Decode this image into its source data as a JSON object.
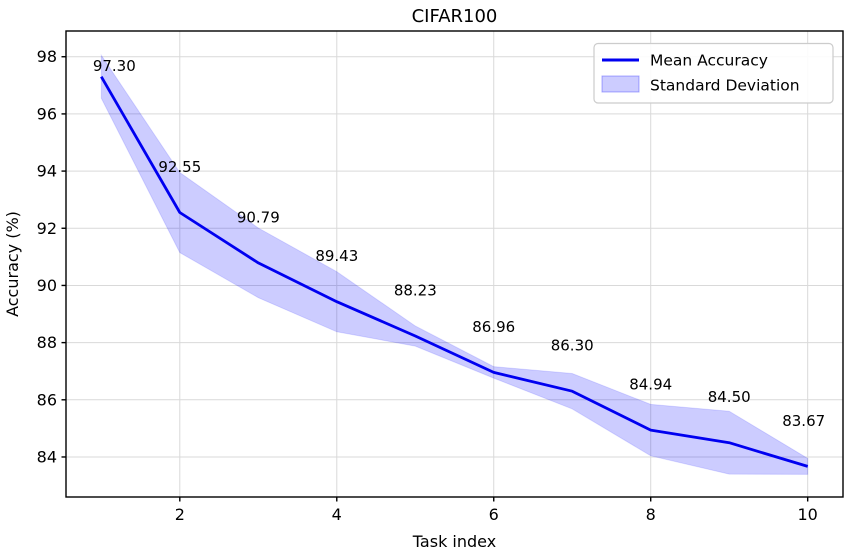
{
  "chart_data": {
    "type": "line",
    "title": "CIFAR100",
    "xlabel": "Task index",
    "ylabel": "Accuracy (%)",
    "x": [
      1,
      2,
      3,
      4,
      5,
      6,
      7,
      8,
      9,
      10
    ],
    "series": [
      {
        "name": "Mean Accuracy",
        "kind": "line",
        "values": [
          97.3,
          92.55,
          90.79,
          89.43,
          88.23,
          86.96,
          86.3,
          84.94,
          84.5,
          83.67
        ]
      },
      {
        "name": "Standard Deviation",
        "kind": "band",
        "std": [
          0.75,
          1.4,
          1.22,
          1.05,
          0.35,
          0.2,
          0.62,
          0.9,
          1.1,
          0.28
        ]
      }
    ],
    "annotations": [
      "97.30",
      "92.55",
      "90.79",
      "89.43",
      "88.23",
      "86.96",
      "86.30",
      "84.94",
      "84.50",
      "83.67"
    ],
    "xticks": [
      2,
      4,
      6,
      8,
      10
    ],
    "yticks": [
      84,
      86,
      88,
      90,
      92,
      94,
      96,
      98
    ],
    "xlim": [
      0.55,
      10.45
    ],
    "ylim": [
      82.6,
      98.9
    ],
    "grid": true,
    "legend": {
      "position": "upper right",
      "entries": [
        "Mean Accuracy",
        "Standard Deviation"
      ]
    },
    "colors": {
      "line": "#0000f0",
      "band": "#0000ff",
      "band_opacity": "0.2",
      "grid": "#d9d9d9",
      "spine": "#000000",
      "legend_border": "#cccccc",
      "text": "#000000"
    }
  }
}
